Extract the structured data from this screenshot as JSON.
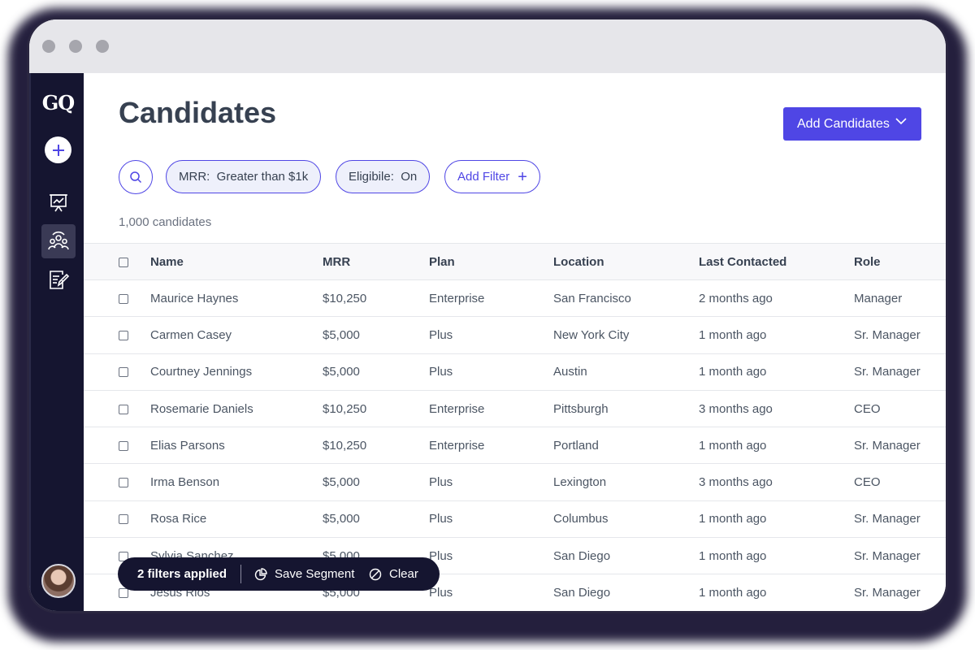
{
  "app": {
    "logo": "GQ"
  },
  "header": {
    "title": "Candidates",
    "add_button": "Add Candidates"
  },
  "filters": {
    "chips": [
      {
        "label": "MRR:  Greater than $1k"
      },
      {
        "label": "Eligibile:  On"
      }
    ],
    "add_filter": "Add Filter"
  },
  "count_text": "1,000 candidates",
  "table": {
    "columns": [
      "Name",
      "MRR",
      "Plan",
      "Location",
      "Last Contacted",
      "Role"
    ],
    "rows": [
      [
        "Maurice Haynes",
        "$10,250",
        "Enterprise",
        "San Francisco",
        "2 months ago",
        "Manager"
      ],
      [
        "Carmen Casey",
        "$5,000",
        "Plus",
        "New York City",
        "1 month ago",
        "Sr. Manager"
      ],
      [
        "Courtney Jennings",
        "$5,000",
        "Plus",
        "Austin",
        "1 month ago",
        "Sr. Manager"
      ],
      [
        "Rosemarie Daniels",
        "$10,250",
        "Enterprise",
        "Pittsburgh",
        "3 months ago",
        "CEO"
      ],
      [
        "Elias Parsons",
        "$10,250",
        "Enterprise",
        "Portland",
        "1 month ago",
        "Sr. Manager"
      ],
      [
        "Irma Benson",
        "$5,000",
        "Plus",
        "Lexington",
        "3 months ago",
        "CEO"
      ],
      [
        "Rosa Rice",
        "$5,000",
        "Plus",
        "Columbus",
        "1 month ago",
        "Sr. Manager"
      ],
      [
        "Sylvia Sanchez",
        "$5,000",
        "Plus",
        "San Diego",
        "1 month ago",
        "Sr. Manager"
      ],
      [
        "Jesus Rios",
        "$5,000",
        "Plus",
        "San Diego",
        "1 month ago",
        "Sr. Manager"
      ]
    ]
  },
  "toast": {
    "count": "2 filters applied",
    "save": "Save Segment",
    "clear": "Clear"
  },
  "icons": {
    "sidebar": [
      "plus-icon",
      "presentation-chart-icon",
      "users-icon",
      "notes-icon"
    ],
    "toolbar": [
      "search-icon",
      "chevron-down-icon",
      "plus-icon"
    ],
    "toast": [
      "pie-chart-icon",
      "ban-icon"
    ]
  },
  "colors": {
    "accent": "#4f46e5",
    "sidebar": "#151530",
    "chip_bg": "#eef0fb"
  }
}
